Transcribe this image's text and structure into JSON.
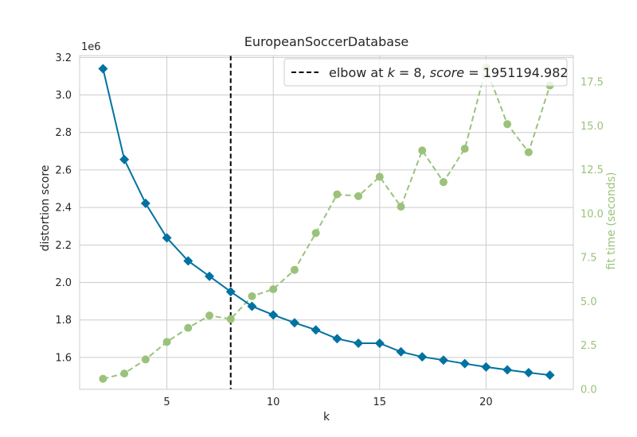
{
  "chart_data": {
    "type": "line",
    "title": "EuropeanSoccerDatabase",
    "xlabel": "k",
    "ylabel": "distortion score",
    "y2label": "fit time (seconds)",
    "y_offset_label": "1e6",
    "xlim": [
      0.9,
      24.1
    ],
    "ylim": [
      1.43,
      3.21
    ],
    "y2lim": [
      0.0,
      19.0
    ],
    "xticks": [
      5,
      10,
      15,
      20
    ],
    "xtick_labels": [
      "5",
      "10",
      "15",
      "20"
    ],
    "yticks": [
      1.6,
      1.8,
      2.0,
      2.2,
      2.4,
      2.6,
      2.8,
      3.0,
      3.2
    ],
    "ytick_labels": [
      "1.6",
      "1.8",
      "2.0",
      "2.2",
      "2.4",
      "2.6",
      "2.8",
      "3.0",
      "3.2"
    ],
    "y2ticks": [
      0.0,
      2.5,
      5.0,
      7.5,
      10.0,
      12.5,
      15.0,
      17.5
    ],
    "y2tick_labels": [
      "0.0",
      "2.5",
      "5.0",
      "7.5",
      "10.0",
      "12.5",
      "15.0",
      "17.5"
    ],
    "grid": true,
    "legend_position": "top-right",
    "colors": {
      "distortion": "#0072a1",
      "fit_time": "#9bc27b",
      "elbow": "#000000",
      "grid": "#cccccc",
      "spine": "#cccccc"
    },
    "elbow": {
      "k": 8,
      "label_prefix": "elbow at ",
      "label_k_var": "k",
      "label_eq1": " = 8, ",
      "label_score_var": "score",
      "label_eq2": " = 1951194.982"
    },
    "series": [
      {
        "axis": "left",
        "x": [
          2,
          3,
          4,
          5,
          6,
          7,
          8,
          9,
          10,
          11,
          12,
          13,
          14,
          15,
          16,
          17,
          18,
          19,
          20,
          21,
          22,
          23
        ],
        "values": [
          3.14,
          2.656,
          2.422,
          2.238,
          2.115,
          2.033,
          1.951,
          1.873,
          1.827,
          1.785,
          1.747,
          1.7,
          1.676,
          1.676,
          1.63,
          1.603,
          1.586,
          1.567,
          1.549,
          1.534,
          1.519,
          1.506
        ]
      },
      {
        "axis": "right",
        "x": [
          2,
          3,
          4,
          5,
          6,
          7,
          8,
          9,
          10,
          11,
          12,
          13,
          14,
          15,
          16,
          17,
          18,
          19,
          20,
          21,
          22,
          23
        ],
        "values": [
          0.6,
          0.9,
          1.7,
          2.7,
          3.5,
          4.2,
          4.0,
          5.3,
          5.7,
          6.8,
          8.9,
          11.1,
          11.0,
          12.1,
          10.4,
          13.6,
          11.8,
          13.7,
          18.3,
          15.1,
          13.5,
          17.3
        ]
      }
    ]
  }
}
